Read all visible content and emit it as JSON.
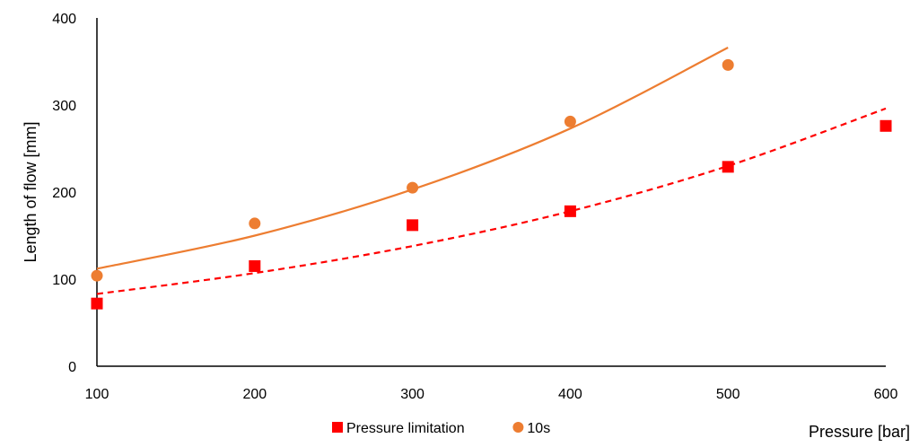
{
  "chart_data": {
    "type": "scatter",
    "title": "",
    "xlabel": "Pressure [bar]",
    "ylabel": "Length of flow [mm]",
    "xlim": [
      100,
      600
    ],
    "ylim": [
      0,
      400
    ],
    "x_ticks": [
      "100",
      "200",
      "300",
      "400",
      "500",
      "600"
    ],
    "y_ticks": [
      "0",
      "100",
      "200",
      "300",
      "400"
    ],
    "grid": false,
    "legend_position": "bottom",
    "series": [
      {
        "name": "Pressure limitation",
        "marker": "square",
        "color": "#ff0000",
        "x": [
          100,
          200,
          300,
          400,
          500,
          600
        ],
        "y": [
          72,
          115,
          162,
          178,
          229,
          276
        ],
        "trendline": {
          "style": "dashed",
          "color": "#ff0000",
          "x": [
            100,
            200,
            300,
            400,
            500,
            600
          ],
          "y": [
            83,
            107,
            138,
            178,
            230,
            296
          ]
        }
      },
      {
        "name": "10s",
        "marker": "circle",
        "color": "#ed7d31",
        "x": [
          100,
          200,
          300,
          400,
          500
        ],
        "y": [
          104,
          164,
          205,
          281,
          346
        ],
        "trendline": {
          "style": "solid",
          "color": "#ed7d31",
          "x": [
            100,
            200,
            300,
            400,
            500
          ],
          "y": [
            112,
            150,
            203,
            273,
            366
          ]
        }
      }
    ]
  }
}
